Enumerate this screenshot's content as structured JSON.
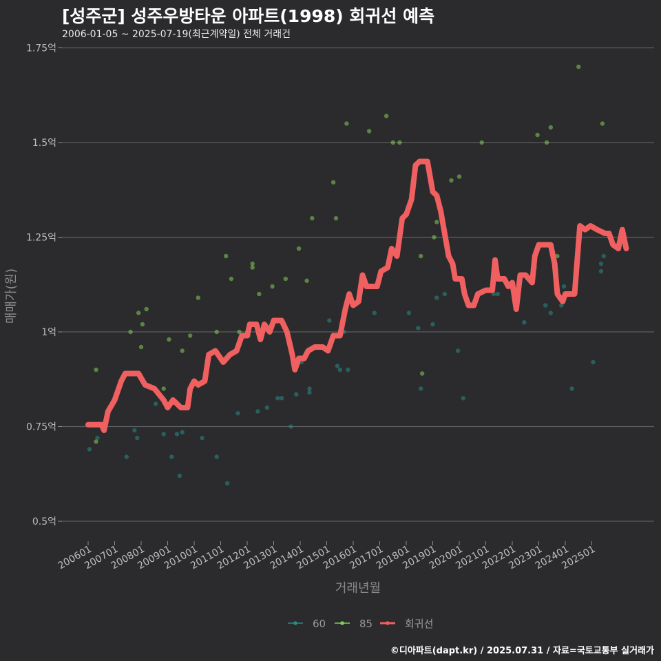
{
  "title": "[성주군] 성주우방타운 아파트(1998) 회귀선 예측",
  "subtitle": "2006-01-05 ~ 2025-07-19(최근계약일) 전체 거래건",
  "caption": "©디아파트(dapt.kr) / 2025.07.31 / 자료=국토교통부 실거래가",
  "chart_data": {
    "type": "scatter",
    "xlabel": "거래년월",
    "ylabel": "매매가(원)",
    "ylim": [
      0.45,
      1.78
    ],
    "y_unit_suffix": "억",
    "y_ticks": [
      {
        "value": 0.5,
        "label": "0.5억"
      },
      {
        "value": 0.75,
        "label": "0.75억"
      },
      {
        "value": 1.0,
        "label": "1억"
      },
      {
        "value": 1.25,
        "label": "1.25억"
      },
      {
        "value": 1.5,
        "label": "1.5억"
      },
      {
        "value": 1.75,
        "label": "1.75억"
      }
    ],
    "xlim": [
      2005.7,
      2025.9
    ],
    "x_ticks": [
      {
        "value": 2006,
        "label": "200601"
      },
      {
        "value": 2007,
        "label": "200701"
      },
      {
        "value": 2008,
        "label": "200801"
      },
      {
        "value": 2009,
        "label": "200901"
      },
      {
        "value": 2010,
        "label": "201001"
      },
      {
        "value": 2011,
        "label": "201101"
      },
      {
        "value": 2012,
        "label": "201201"
      },
      {
        "value": 2013,
        "label": "201301"
      },
      {
        "value": 2014,
        "label": "201401"
      },
      {
        "value": 2015,
        "label": "201501"
      },
      {
        "value": 2016,
        "label": "201601"
      },
      {
        "value": 2017,
        "label": "201701"
      },
      {
        "value": 2018,
        "label": "201801"
      },
      {
        "value": 2019,
        "label": "201901"
      },
      {
        "value": 2020,
        "label": "202001"
      },
      {
        "value": 2021,
        "label": "202101"
      },
      {
        "value": 2022,
        "label": "202201"
      },
      {
        "value": 2023,
        "label": "202301"
      },
      {
        "value": 2024,
        "label": "202401"
      },
      {
        "value": 2025,
        "label": "202501"
      }
    ],
    "grid": "horizontal",
    "legend_position": "bottom",
    "colors": {
      "60": "#2a8a86",
      "85": "#7fd05a",
      "regression": "#f06060"
    },
    "series": [
      {
        "name": "60",
        "kind": "points",
        "points": [
          [
            2006.05,
            0.69
          ],
          [
            2006.35,
            0.72
          ],
          [
            2007.45,
            0.67
          ],
          [
            2007.75,
            0.74
          ],
          [
            2007.85,
            0.72
          ],
          [
            2008.55,
            0.81
          ],
          [
            2008.85,
            0.73
          ],
          [
            2009.15,
            0.67
          ],
          [
            2009.35,
            0.73
          ],
          [
            2009.45,
            0.62
          ],
          [
            2009.55,
            0.735
          ],
          [
            2010.3,
            0.72
          ],
          [
            2010.85,
            0.67
          ],
          [
            2011.25,
            0.6
          ],
          [
            2011.65,
            0.785
          ],
          [
            2012.05,
            0.99
          ],
          [
            2012.4,
            0.79
          ],
          [
            2012.75,
            0.8
          ],
          [
            2013.15,
            0.825
          ],
          [
            2013.3,
            0.825
          ],
          [
            2013.65,
            0.75
          ],
          [
            2013.85,
            0.835
          ],
          [
            2014.05,
            0.92
          ],
          [
            2014.35,
            0.84
          ],
          [
            2014.35,
            0.85
          ],
          [
            2015.1,
            1.03
          ],
          [
            2015.4,
            0.91
          ],
          [
            2015.5,
            0.9
          ],
          [
            2015.65,
            1.0
          ],
          [
            2015.8,
            0.9
          ],
          [
            2016.8,
            1.05
          ],
          [
            2018.1,
            1.05
          ],
          [
            2018.45,
            1.01
          ],
          [
            2018.55,
            0.85
          ],
          [
            2019.0,
            1.02
          ],
          [
            2019.15,
            1.09
          ],
          [
            2019.45,
            1.1
          ],
          [
            2019.95,
            0.95
          ],
          [
            2020.15,
            0.825
          ],
          [
            2021.3,
            1.1
          ],
          [
            2021.45,
            1.1
          ],
          [
            2022.05,
            1.1
          ],
          [
            2022.45,
            1.025
          ],
          [
            2022.85,
            1.17
          ],
          [
            2023.25,
            1.07
          ],
          [
            2023.45,
            1.05
          ],
          [
            2023.85,
            1.07
          ],
          [
            2023.95,
            1.12
          ],
          [
            2024.25,
            0.85
          ],
          [
            2025.05,
            0.92
          ],
          [
            2025.35,
            1.16
          ],
          [
            2025.35,
            1.18
          ],
          [
            2025.45,
            1.2
          ]
        ]
      },
      {
        "name": "85",
        "kind": "points",
        "points": [
          [
            2006.3,
            0.9
          ],
          [
            2006.3,
            0.71
          ],
          [
            2007.6,
            1.0
          ],
          [
            2007.9,
            1.05
          ],
          [
            2008.0,
            0.96
          ],
          [
            2008.05,
            1.02
          ],
          [
            2008.2,
            1.06
          ],
          [
            2008.85,
            0.85
          ],
          [
            2009.05,
            0.98
          ],
          [
            2009.55,
            0.95
          ],
          [
            2009.85,
            0.99
          ],
          [
            2010.15,
            1.09
          ],
          [
            2010.85,
            1.0
          ],
          [
            2011.2,
            1.2
          ],
          [
            2011.4,
            1.14
          ],
          [
            2011.7,
            1.0
          ],
          [
            2012.2,
            1.18
          ],
          [
            2012.2,
            1.17
          ],
          [
            2012.45,
            1.1
          ],
          [
            2012.95,
            1.12
          ],
          [
            2013.45,
            1.14
          ],
          [
            2013.95,
            1.22
          ],
          [
            2014.25,
            1.135
          ],
          [
            2014.45,
            1.3
          ],
          [
            2015.25,
            1.395
          ],
          [
            2015.35,
            1.3
          ],
          [
            2015.75,
            1.55
          ],
          [
            2016.6,
            1.53
          ],
          [
            2017.25,
            1.57
          ],
          [
            2017.5,
            1.5
          ],
          [
            2017.75,
            1.5
          ],
          [
            2018.55,
            1.2
          ],
          [
            2018.6,
            0.89
          ],
          [
            2019.05,
            1.25
          ],
          [
            2019.15,
            1.29
          ],
          [
            2019.7,
            1.4
          ],
          [
            2020.0,
            1.41
          ],
          [
            2020.85,
            1.5
          ],
          [
            2022.95,
            1.52
          ],
          [
            2023.3,
            1.5
          ],
          [
            2023.45,
            1.54
          ],
          [
            2023.7,
            1.2
          ],
          [
            2024.5,
            1.7
          ],
          [
            2025.4,
            1.55
          ]
        ]
      },
      {
        "name": "회귀선",
        "kind": "line",
        "points": [
          [
            2006.0,
            0.755
          ],
          [
            2006.5,
            0.755
          ],
          [
            2006.6,
            0.74
          ],
          [
            2006.75,
            0.79
          ],
          [
            2007.0,
            0.82
          ],
          [
            2007.25,
            0.87
          ],
          [
            2007.4,
            0.89
          ],
          [
            2007.9,
            0.89
          ],
          [
            2008.15,
            0.86
          ],
          [
            2008.5,
            0.85
          ],
          [
            2008.85,
            0.82
          ],
          [
            2009.0,
            0.8
          ],
          [
            2009.2,
            0.82
          ],
          [
            2009.5,
            0.8
          ],
          [
            2009.75,
            0.8
          ],
          [
            2009.85,
            0.85
          ],
          [
            2010.0,
            0.87
          ],
          [
            2010.15,
            0.86
          ],
          [
            2010.4,
            0.87
          ],
          [
            2010.55,
            0.94
          ],
          [
            2010.8,
            0.95
          ],
          [
            2011.1,
            0.92
          ],
          [
            2011.35,
            0.94
          ],
          [
            2011.6,
            0.95
          ],
          [
            2011.8,
            0.99
          ],
          [
            2012.0,
            0.99
          ],
          [
            2012.1,
            1.02
          ],
          [
            2012.35,
            1.02
          ],
          [
            2012.5,
            0.98
          ],
          [
            2012.65,
            1.02
          ],
          [
            2012.85,
            1.0
          ],
          [
            2013.0,
            1.03
          ],
          [
            2013.3,
            1.03
          ],
          [
            2013.5,
            1.0
          ],
          [
            2013.7,
            0.94
          ],
          [
            2013.8,
            0.9
          ],
          [
            2013.95,
            0.93
          ],
          [
            2014.15,
            0.93
          ],
          [
            2014.3,
            0.95
          ],
          [
            2014.55,
            0.96
          ],
          [
            2014.85,
            0.96
          ],
          [
            2015.05,
            0.95
          ],
          [
            2015.25,
            0.99
          ],
          [
            2015.5,
            0.99
          ],
          [
            2015.7,
            1.06
          ],
          [
            2015.85,
            1.1
          ],
          [
            2016.0,
            1.07
          ],
          [
            2016.2,
            1.08
          ],
          [
            2016.35,
            1.15
          ],
          [
            2016.5,
            1.12
          ],
          [
            2016.9,
            1.12
          ],
          [
            2017.05,
            1.16
          ],
          [
            2017.3,
            1.17
          ],
          [
            2017.45,
            1.22
          ],
          [
            2017.65,
            1.2
          ],
          [
            2017.85,
            1.3
          ],
          [
            2018.0,
            1.31
          ],
          [
            2018.2,
            1.35
          ],
          [
            2018.35,
            1.44
          ],
          [
            2018.5,
            1.45
          ],
          [
            2018.8,
            1.45
          ],
          [
            2019.0,
            1.37
          ],
          [
            2019.15,
            1.36
          ],
          [
            2019.3,
            1.32
          ],
          [
            2019.45,
            1.26
          ],
          [
            2019.6,
            1.2
          ],
          [
            2019.75,
            1.18
          ],
          [
            2019.85,
            1.14
          ],
          [
            2020.1,
            1.14
          ],
          [
            2020.2,
            1.1
          ],
          [
            2020.35,
            1.07
          ],
          [
            2020.55,
            1.07
          ],
          [
            2020.7,
            1.1
          ],
          [
            2021.0,
            1.11
          ],
          [
            2021.25,
            1.11
          ],
          [
            2021.35,
            1.19
          ],
          [
            2021.45,
            1.14
          ],
          [
            2021.7,
            1.14
          ],
          [
            2021.85,
            1.12
          ],
          [
            2022.0,
            1.13
          ],
          [
            2022.15,
            1.06
          ],
          [
            2022.3,
            1.15
          ],
          [
            2022.5,
            1.15
          ],
          [
            2022.75,
            1.13
          ],
          [
            2022.85,
            1.2
          ],
          [
            2023.0,
            1.23
          ],
          [
            2023.45,
            1.23
          ],
          [
            2023.6,
            1.18
          ],
          [
            2023.7,
            1.1
          ],
          [
            2023.9,
            1.08
          ],
          [
            2024.0,
            1.1
          ],
          [
            2024.35,
            1.1
          ],
          [
            2024.55,
            1.28
          ],
          [
            2024.75,
            1.27
          ],
          [
            2024.95,
            1.28
          ],
          [
            2025.2,
            1.27
          ],
          [
            2025.5,
            1.26
          ],
          [
            2025.65,
            1.26
          ],
          [
            2025.8,
            1.23
          ],
          [
            2026.0,
            1.22
          ],
          [
            2026.15,
            1.27
          ],
          [
            2026.3,
            1.22
          ]
        ]
      }
    ]
  }
}
